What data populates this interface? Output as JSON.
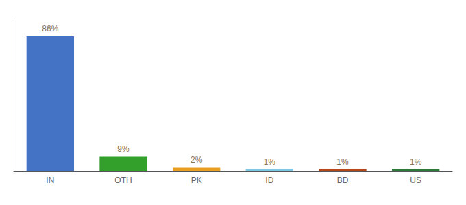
{
  "chart_data": {
    "type": "bar",
    "categories": [
      "IN",
      "OTH",
      "PK",
      "ID",
      "BD",
      "US"
    ],
    "values": [
      86,
      9,
      2,
      1,
      1,
      1
    ],
    "value_labels": [
      "86%",
      "9%",
      "2%",
      "1%",
      "1%",
      "1%"
    ],
    "colors": [
      "#4472c4",
      "#33a02c",
      "#e8a020",
      "#7ec8e3",
      "#b5471b",
      "#2d7a3a"
    ],
    "ylim": [
      0,
      96
    ],
    "data_labels": true,
    "tick_labels": "x",
    "grid": false
  }
}
